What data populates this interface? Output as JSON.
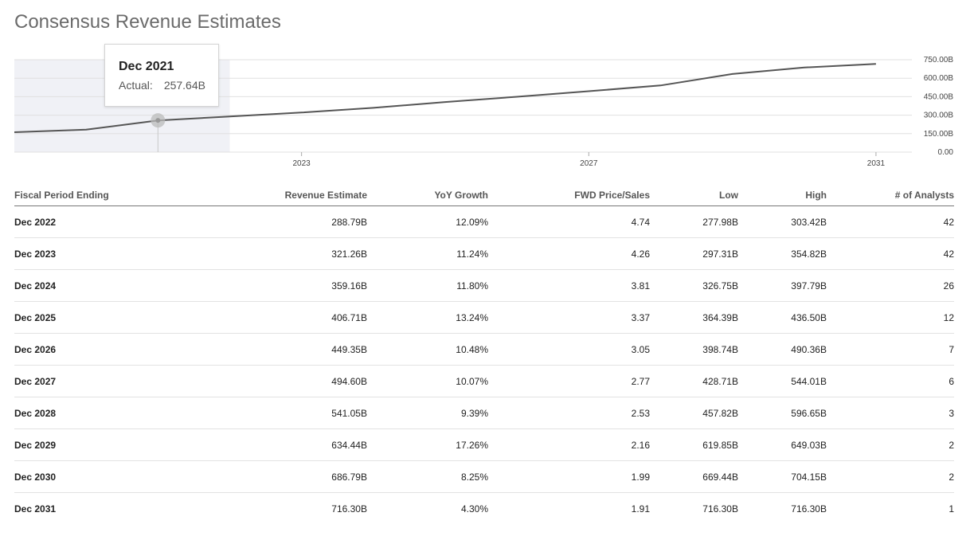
{
  "page_title": "Consensus Revenue Estimates",
  "tooltip": {
    "title": "Dec 2021",
    "label": "Actual:",
    "value": "257.64B"
  },
  "chart_data": {
    "type": "line",
    "title": "",
    "x_ticks": [
      "2023",
      "2027",
      "2031"
    ],
    "x_tick_years": [
      2023,
      2027,
      2031
    ],
    "y_ticks": [
      "0.00",
      "150.00B",
      "300.00B",
      "450.00B",
      "600.00B",
      "750.00B"
    ],
    "y_tick_values": [
      0,
      150,
      300,
      450,
      600,
      750
    ],
    "ylim": [
      0,
      750
    ],
    "xlim": [
      2019.0,
      2031.5
    ],
    "grid": true,
    "actual_region_end": 2022.0,
    "highlight_point": {
      "x": 2021,
      "y": 257.64
    },
    "series": [
      {
        "x": [
          2019,
          2020,
          2021,
          2022,
          2023,
          2024,
          2025,
          2026,
          2027,
          2028,
          2029,
          2030,
          2031
        ],
        "y": [
          161.86,
          182.53,
          257.64,
          288.79,
          321.26,
          359.16,
          406.71,
          449.35,
          494.6,
          541.05,
          634.44,
          686.79,
          716.3
        ]
      }
    ]
  },
  "table": {
    "columns": [
      "Fiscal Period Ending",
      "Revenue Estimate",
      "YoY Growth",
      "FWD Price/Sales",
      "Low",
      "High",
      "# of Analysts"
    ],
    "rows": [
      [
        "Dec 2022",
        "288.79B",
        "12.09%",
        "4.74",
        "277.98B",
        "303.42B",
        "42"
      ],
      [
        "Dec 2023",
        "321.26B",
        "11.24%",
        "4.26",
        "297.31B",
        "354.82B",
        "42"
      ],
      [
        "Dec 2024",
        "359.16B",
        "11.80%",
        "3.81",
        "326.75B",
        "397.79B",
        "26"
      ],
      [
        "Dec 2025",
        "406.71B",
        "13.24%",
        "3.37",
        "364.39B",
        "436.50B",
        "12"
      ],
      [
        "Dec 2026",
        "449.35B",
        "10.48%",
        "3.05",
        "398.74B",
        "490.36B",
        "7"
      ],
      [
        "Dec 2027",
        "494.60B",
        "10.07%",
        "2.77",
        "428.71B",
        "544.01B",
        "6"
      ],
      [
        "Dec 2028",
        "541.05B",
        "9.39%",
        "2.53",
        "457.82B",
        "596.65B",
        "3"
      ],
      [
        "Dec 2029",
        "634.44B",
        "17.26%",
        "2.16",
        "619.85B",
        "649.03B",
        "2"
      ],
      [
        "Dec 2030",
        "686.79B",
        "8.25%",
        "1.99",
        "669.44B",
        "704.15B",
        "2"
      ],
      [
        "Dec 2031",
        "716.30B",
        "4.30%",
        "1.91",
        "716.30B",
        "716.30B",
        "1"
      ]
    ]
  },
  "colors": {
    "line": "#555555",
    "actual_region": "#f0f1f6",
    "grid": "#e0e0e0",
    "marker": "#bbbbbb"
  }
}
